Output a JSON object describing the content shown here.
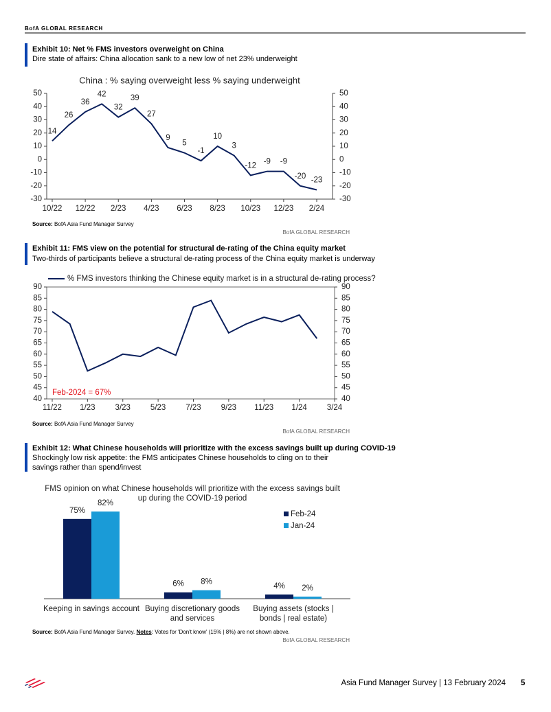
{
  "header": {
    "brand": "BofA GLOBAL RESEARCH"
  },
  "exhibits": [
    {
      "title": "Exhibit 10: Net % FMS investors overweight on China",
      "subtitle": "Dire state of affairs: China allocation sank to a new low of net 23% underweight",
      "source_label": "Source:",
      "source": "BofA Asia Fund Manager Survey",
      "credit": "BofA GLOBAL RESEARCH",
      "chart_data": {
        "type": "line",
        "title": "China : % saying overweight less % saying underweight",
        "categories": [
          "10/22",
          null,
          "12/22",
          null,
          "2/23",
          null,
          "4/23",
          null,
          "6/23",
          null,
          "8/23",
          null,
          "10/23",
          null,
          "12/23",
          null,
          "2/24"
        ],
        "series": [
          {
            "color": "#0a1f5c",
            "values": [
              14,
              26,
              36,
              42,
              32,
              39,
              27,
              9,
              5,
              -1,
              10,
              3,
              -12,
              -9,
              -9,
              -20,
              -23
            ]
          }
        ],
        "data_labels": true,
        "ylim": [
          -30,
          50
        ],
        "yticks": [
          -30,
          -20,
          -10,
          0,
          10,
          20,
          30,
          40,
          50
        ],
        "y2lim": [
          -30,
          50
        ],
        "y2ticks": [
          -30,
          -20,
          -10,
          0,
          10,
          20,
          30,
          40,
          50
        ]
      }
    },
    {
      "title": "Exhibit 11: FMS view on the potential for structural de-rating of the China equity market",
      "subtitle": "Two-thirds of participants believe a structural de-rating process of the China equity market is underway",
      "source_label": "Source:",
      "source": "BofA Asia Fund Manager Survey",
      "credit": "BofA GLOBAL RESEARCH",
      "chart_data": {
        "type": "line",
        "categories": [
          "11/22",
          null,
          "1/23",
          null,
          "3/23",
          null,
          "5/23",
          null,
          "7/23",
          null,
          "9/23",
          null,
          "11/23",
          null,
          "1/24",
          null,
          "3/24"
        ],
        "series": [
          {
            "name": "% FMS investors thinking the Chinese equity market is in a structural de-rating process?",
            "color": "#0a1f5c",
            "values": [
              79,
              73.5,
              52.5,
              56,
              60,
              59,
              63,
              59.5,
              81,
              84,
              69.5,
              73.5,
              76.5,
              74.5,
              77.5,
              67,
              null
            ]
          }
        ],
        "annotation": "Feb-2024 = 67%",
        "annotation_color": "#e3121b",
        "ylim": [
          40,
          90
        ],
        "yticks": [
          40,
          45,
          50,
          55,
          60,
          65,
          70,
          75,
          80,
          85,
          90
        ],
        "y2lim": [
          40,
          90
        ],
        "y2ticks": [
          40,
          45,
          50,
          55,
          60,
          65,
          70,
          75,
          80,
          85,
          90
        ]
      }
    },
    {
      "title": "Exhibit 12: What Chinese households will prioritize with the excess savings built up during COVID-19",
      "subtitle": "Shockingly low risk appetite: the FMS anticipates Chinese households to cling on to their savings rather than spend/invest",
      "source_label": "Source:",
      "source": "BofA Asia Fund Manager Survey.",
      "notes_label": "Notes",
      "notes": ": Votes for 'Don't know' (15% | 8%) are not shown above.",
      "credit": "BofA GLOBAL RESEARCH",
      "chart_data": {
        "type": "bar",
        "title": "FMS opinion on what Chinese households will prioritize with the excess savings built up during the COVID-19 period",
        "categories": [
          "Keeping in savings account",
          "Buying discretionary goods and services",
          "Buying assets (stocks | bonds | real estate)"
        ],
        "series": [
          {
            "name": "Feb-24",
            "color": "#0a1f5c",
            "values": [
              75,
              6,
              4
            ],
            "value_labels": [
              "75%",
              "6%",
              "4%"
            ]
          },
          {
            "name": "Jan-24",
            "color": "#1a9bd7",
            "values": [
              82,
              8,
              2
            ],
            "value_labels": [
              "82%",
              "8%",
              "2%"
            ]
          }
        ],
        "legend": "right"
      }
    }
  ],
  "footer": {
    "text": "Asia Fund Manager Survey | 13 February 2024",
    "page": "5"
  }
}
